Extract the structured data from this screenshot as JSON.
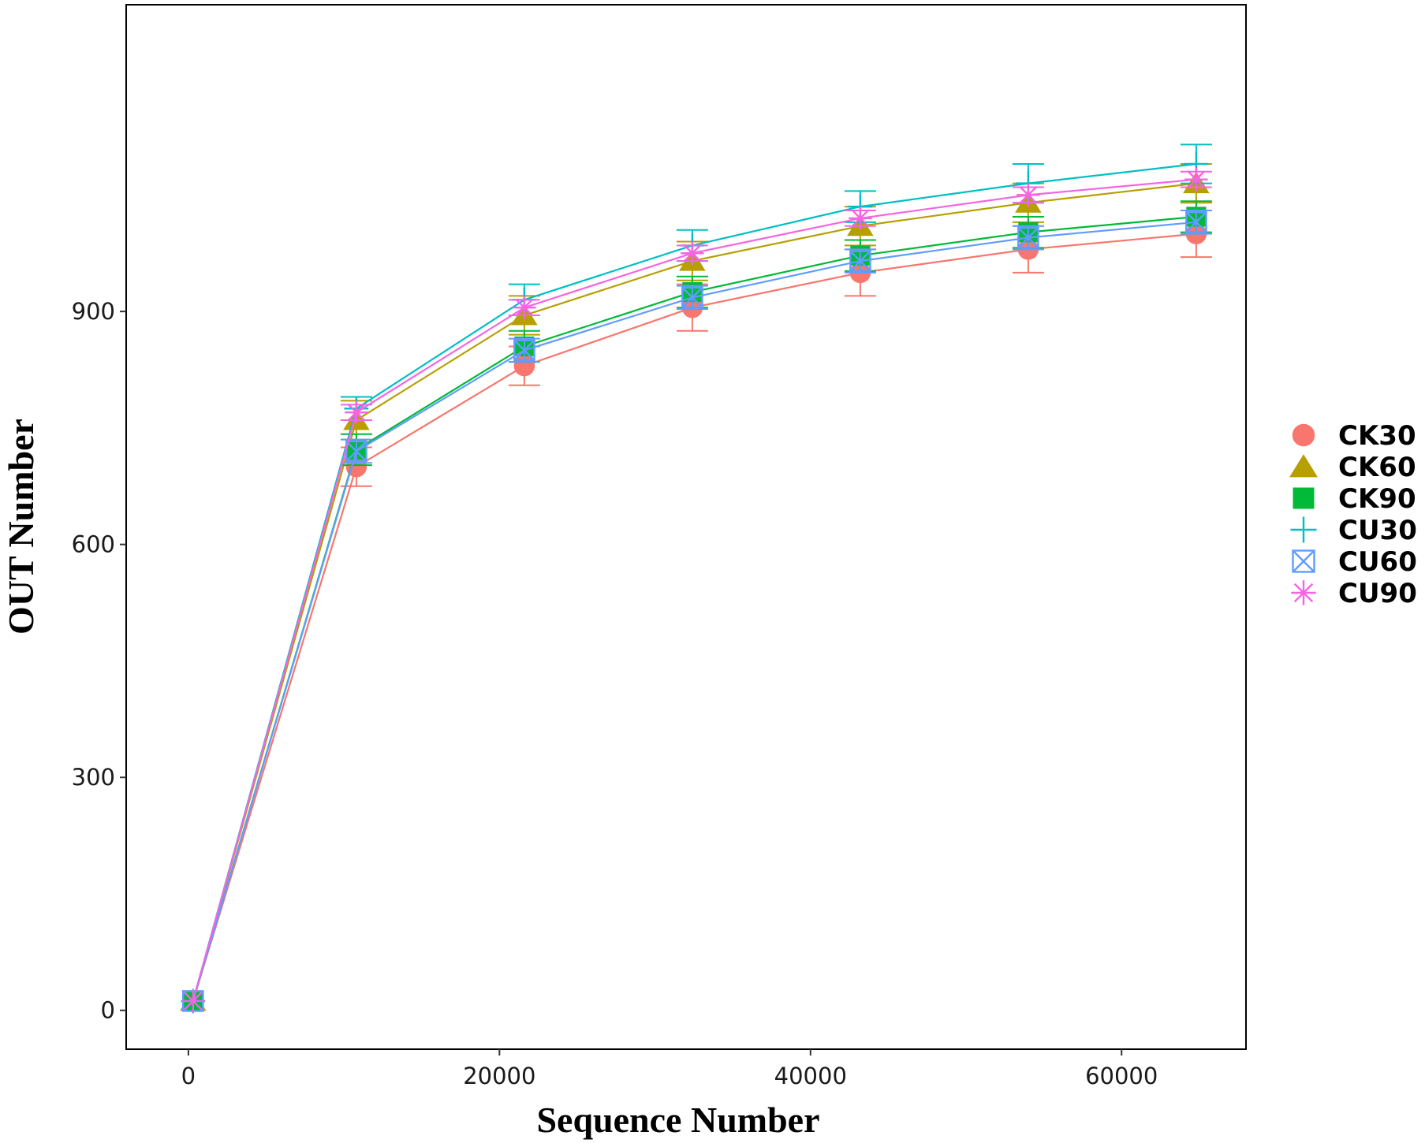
{
  "chart_data": {
    "type": "line",
    "title": "",
    "xlabel": "Sequence Number",
    "ylabel": "OUT Number",
    "xlim": [
      -4000,
      68000
    ],
    "ylim": [
      -50,
      1295
    ],
    "x_ticks": [
      0,
      20000,
      40000,
      60000
    ],
    "x_tick_labels": [
      "0",
      "20000",
      "40000",
      "60000"
    ],
    "y_ticks": [
      0,
      300,
      600,
      900
    ],
    "y_tick_labels": [
      "0",
      "300",
      "600",
      "900"
    ],
    "grid": false,
    "legend_position": "right",
    "x": [
      300,
      10800,
      21600,
      32400,
      43200,
      54000,
      64800
    ],
    "series": [
      {
        "name": "CK30",
        "color": "#F8766D",
        "marker": "circle",
        "values": [
          12,
          700,
          830,
          905,
          950,
          980,
          1000
        ],
        "error": [
          0,
          25,
          25,
          30,
          30,
          30,
          30
        ]
      },
      {
        "name": "CK60",
        "color": "#B79F00",
        "marker": "triangle",
        "values": [
          12,
          760,
          895,
          965,
          1010,
          1040,
          1065
        ],
        "error": [
          0,
          25,
          25,
          25,
          25,
          25,
          25
        ]
      },
      {
        "name": "CK90",
        "color": "#00BA38",
        "marker": "square",
        "values": [
          12,
          722,
          855,
          925,
          972,
          1002,
          1022
        ],
        "error": [
          0,
          20,
          20,
          20,
          20,
          20,
          20
        ]
      },
      {
        "name": "CU30",
        "color": "#00BFC4",
        "marker": "plus",
        "values": [
          12,
          775,
          915,
          985,
          1035,
          1065,
          1090
        ],
        "error": [
          0,
          15,
          20,
          20,
          20,
          25,
          25
        ]
      },
      {
        "name": "CU60",
        "color": "#619CFF",
        "marker": "square-x",
        "values": [
          12,
          720,
          850,
          918,
          965,
          995,
          1015
        ],
        "error": [
          0,
          15,
          15,
          15,
          15,
          15,
          15
        ]
      },
      {
        "name": "CU90",
        "color": "#F564E3",
        "marker": "asterisk",
        "values": [
          12,
          770,
          905,
          975,
          1020,
          1050,
          1070
        ],
        "error": [
          0,
          10,
          10,
          10,
          10,
          10,
          10
        ]
      }
    ]
  }
}
